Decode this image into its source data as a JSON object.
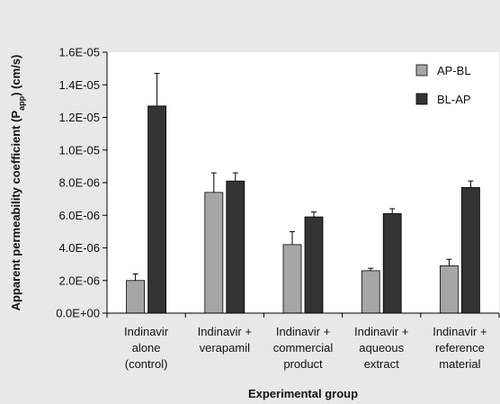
{
  "chart_data": {
    "type": "bar",
    "title": "",
    "xlabel": "Experimental group",
    "ylabel_parts": {
      "pre": "Apparent permeability coefficient (P",
      "sub": "app",
      "post": ") (cm/s)"
    },
    "ylim": [
      0,
      1.6e-05
    ],
    "yticks": [
      0,
      2e-06,
      4e-06,
      6e-06,
      8e-06,
      1e-05,
      1.2e-05,
      1.4e-05,
      1.6e-05
    ],
    "ytick_labels": [
      "0.0E+00",
      "2.0E-06",
      "4.0E-06",
      "6.0E-06",
      "8.0E-06",
      "1.0E-05",
      "1.2E-05",
      "1.4E-05",
      "1.6E-05"
    ],
    "categories": [
      [
        "Indinavir",
        "alone",
        "(control)"
      ],
      [
        "Indinavir +",
        "verapamil"
      ],
      [
        "Indinavir +",
        "commercial",
        "product"
      ],
      [
        "Indinavir +",
        "aqueous",
        "extract"
      ],
      [
        "Indinavir +",
        "reference",
        "material"
      ]
    ],
    "series": [
      {
        "name": "AP-BL",
        "color": "#a6a6a6",
        "values": [
          2e-06,
          7.4e-06,
          4.2e-06,
          2.6e-06,
          2.9e-06
        ],
        "errors": [
          4e-07,
          1.2e-06,
          8e-07,
          1.5e-07,
          4e-07
        ]
      },
      {
        "name": "BL-AP",
        "color": "#333333",
        "values": [
          1.27e-05,
          8.1e-06,
          5.9e-06,
          6.1e-06,
          7.7e-06
        ],
        "errors": [
          2e-06,
          5e-07,
          3e-07,
          3e-07,
          4e-07
        ]
      }
    ],
    "legend_position": "top-right",
    "grid": false
  }
}
